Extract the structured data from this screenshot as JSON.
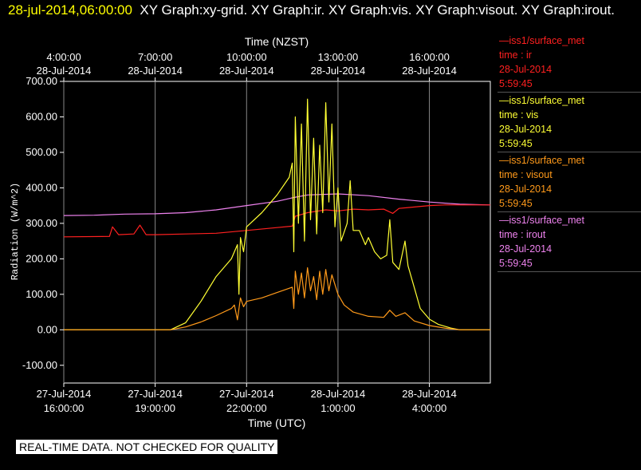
{
  "header": {
    "timestamp": "28-jul-2014,06:00:00",
    "graphs": "XY Graph:xy-grid.  XY Graph:ir.  XY Graph:vis.  XY Graph:visout.  XY Graph:irout."
  },
  "legend": [
    {
      "name": "—iss1/surface_met",
      "field": "time : ir",
      "date": "28-Jul-2014",
      "time": "5:59:45",
      "color": "#ff2020"
    },
    {
      "name": "—iss1/surface_met",
      "field": "time : vis",
      "date": "28-Jul-2014",
      "time": "5:59:45",
      "color": "#ffff33"
    },
    {
      "name": "—iss1/surface_met",
      "field": "time : visout",
      "date": "28-Jul-2014",
      "time": "5:59:45",
      "color": "#ff9a1a"
    },
    {
      "name": "—iss1/surface_met",
      "field": "time : irout",
      "date": "28-Jul-2014",
      "time": "5:59:45",
      "color": "#ee82ee"
    }
  ],
  "footer": "REAL-TIME DATA. NOT CHECKED FOR QUALITY",
  "chart_data": {
    "type": "line",
    "top_axis_title": "Time (NZST)",
    "xlabel": "Time (UTC)",
    "ylabel": "Radiation (W/m^2)",
    "top_ticks": [
      {
        "t": 0,
        "line1": "4:00:00",
        "line2": "28-Jul-2014"
      },
      {
        "t": 3,
        "line1": "7:00:00",
        "line2": "28-Jul-2014"
      },
      {
        "t": 6,
        "line1": "10:00:00",
        "line2": "28-Jul-2014"
      },
      {
        "t": 9,
        "line1": "13:00:00",
        "line2": "28-Jul-2014"
      },
      {
        "t": 12,
        "line1": "16:00:00",
        "line2": "28-Jul-2014"
      }
    ],
    "bottom_ticks": [
      {
        "t": 0,
        "line1": "27-Jul-2014",
        "line2": "16:00:00"
      },
      {
        "t": 3,
        "line1": "27-Jul-2014",
        "line2": "19:00:00"
      },
      {
        "t": 6,
        "line1": "27-Jul-2014",
        "line2": "22:00:00"
      },
      {
        "t": 9,
        "line1": "28-Jul-2014",
        "line2": "1:00:00"
      },
      {
        "t": 12,
        "line1": "28-Jul-2014",
        "line2": "4:00:00"
      }
    ],
    "y_ticks": [
      "700.00",
      "600.00",
      "500.00",
      "400.00",
      "300.00",
      "200.00",
      "100.00",
      "0.00",
      "-100.00"
    ],
    "ylim": [
      -150,
      700
    ],
    "xlim_hours_from_start": [
      0,
      14
    ],
    "grid": true,
    "series": [
      {
        "name": "time : irout",
        "color": "#ee82ee",
        "points": [
          [
            0,
            322
          ],
          [
            1,
            323
          ],
          [
            2,
            326
          ],
          [
            3,
            327
          ],
          [
            4,
            330
          ],
          [
            5,
            338
          ],
          [
            6,
            350
          ],
          [
            7,
            362
          ],
          [
            7.5,
            372
          ],
          [
            8,
            380
          ],
          [
            9,
            383
          ],
          [
            10,
            378
          ],
          [
            11,
            368
          ],
          [
            12,
            360
          ],
          [
            13,
            354
          ],
          [
            14,
            352
          ]
        ]
      },
      {
        "name": "time : ir",
        "color": "#ff2020",
        "points": [
          [
            0,
            262
          ],
          [
            1.5,
            263
          ],
          [
            1.6,
            290
          ],
          [
            1.8,
            268
          ],
          [
            2.3,
            270
          ],
          [
            2.5,
            295
          ],
          [
            2.7,
            268
          ],
          [
            3,
            268
          ],
          [
            4,
            270
          ],
          [
            5,
            272
          ],
          [
            6,
            280
          ],
          [
            7,
            288
          ],
          [
            7.5,
            292
          ],
          [
            7.6,
            320
          ],
          [
            8,
            330
          ],
          [
            8.6,
            338
          ],
          [
            9,
            335
          ],
          [
            9.5,
            340
          ],
          [
            10,
            338
          ],
          [
            10.5,
            340
          ],
          [
            10.8,
            328
          ],
          [
            11,
            342
          ],
          [
            12,
            350
          ],
          [
            12.5,
            352
          ],
          [
            14,
            352
          ]
        ]
      },
      {
        "name": "time : vis",
        "color": "#ffff33",
        "points": [
          [
            0,
            0
          ],
          [
            3.5,
            0
          ],
          [
            4,
            20
          ],
          [
            4.5,
            80
          ],
          [
            5,
            150
          ],
          [
            5.5,
            200
          ],
          [
            5.7,
            240
          ],
          [
            5.75,
            100
          ],
          [
            5.8,
            260
          ],
          [
            5.9,
            220
          ],
          [
            6,
            290
          ],
          [
            6.5,
            330
          ],
          [
            7,
            380
          ],
          [
            7.4,
            430
          ],
          [
            7.5,
            470
          ],
          [
            7.55,
            220
          ],
          [
            7.6,
            600
          ],
          [
            7.7,
            300
          ],
          [
            7.8,
            580
          ],
          [
            7.9,
            250
          ],
          [
            8,
            650
          ],
          [
            8.1,
            310
          ],
          [
            8.2,
            540
          ],
          [
            8.3,
            270
          ],
          [
            8.4,
            520
          ],
          [
            8.5,
            330
          ],
          [
            8.6,
            640
          ],
          [
            8.7,
            360
          ],
          [
            8.8,
            580
          ],
          [
            8.9,
            290
          ],
          [
            9,
            400
          ],
          [
            9.1,
            250
          ],
          [
            9.3,
            300
          ],
          [
            9.4,
            420
          ],
          [
            9.5,
            280
          ],
          [
            9.7,
            280
          ],
          [
            9.9,
            240
          ],
          [
            10,
            260
          ],
          [
            10.2,
            220
          ],
          [
            10.4,
            200
          ],
          [
            10.6,
            210
          ],
          [
            10.7,
            310
          ],
          [
            10.8,
            190
          ],
          [
            11,
            170
          ],
          [
            11.2,
            250
          ],
          [
            11.3,
            180
          ],
          [
            11.5,
            120
          ],
          [
            11.7,
            60
          ],
          [
            12,
            30
          ],
          [
            12.3,
            15
          ],
          [
            12.7,
            5
          ],
          [
            13,
            0
          ],
          [
            14,
            0
          ]
        ]
      },
      {
        "name": "time : visout",
        "color": "#ff9a1a",
        "points": [
          [
            0,
            0
          ],
          [
            3.5,
            0
          ],
          [
            4,
            8
          ],
          [
            4.5,
            22
          ],
          [
            5,
            40
          ],
          [
            5.5,
            60
          ],
          [
            5.6,
            70
          ],
          [
            5.7,
            28
          ],
          [
            5.8,
            90
          ],
          [
            5.9,
            65
          ],
          [
            6,
            80
          ],
          [
            6.5,
            90
          ],
          [
            7,
            105
          ],
          [
            7.5,
            120
          ],
          [
            7.55,
            60
          ],
          [
            7.6,
            165
          ],
          [
            7.7,
            100
          ],
          [
            7.8,
            160
          ],
          [
            7.9,
            90
          ],
          [
            8,
            175
          ],
          [
            8.1,
            110
          ],
          [
            8.2,
            150
          ],
          [
            8.3,
            85
          ],
          [
            8.4,
            165
          ],
          [
            8.5,
            100
          ],
          [
            8.6,
            170
          ],
          [
            8.7,
            110
          ],
          [
            8.8,
            155
          ],
          [
            9,
            100
          ],
          [
            9.2,
            70
          ],
          [
            9.5,
            50
          ],
          [
            10,
            38
          ],
          [
            10.5,
            35
          ],
          [
            10.7,
            55
          ],
          [
            10.9,
            38
          ],
          [
            11.2,
            48
          ],
          [
            11.5,
            25
          ],
          [
            12,
            12
          ],
          [
            12.5,
            5
          ],
          [
            13,
            0
          ],
          [
            14,
            0
          ]
        ]
      }
    ]
  }
}
